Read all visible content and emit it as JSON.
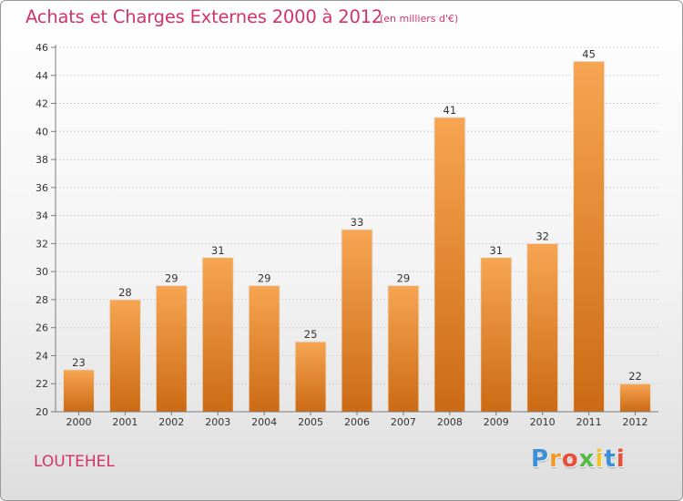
{
  "title": "Achats et Charges Externes 2000 à 2012",
  "subtitle": "(en milliers d'€)",
  "commune": "LOUTEHEL",
  "logo": {
    "letters": [
      "P",
      "r",
      "o",
      "x",
      "i",
      "t",
      "i"
    ],
    "colors": [
      "#3a8fd6",
      "#f29a2e",
      "#e8503a",
      "#58b947",
      "#f2c12e",
      "#3a8fd6",
      "#e8503a"
    ]
  },
  "colors": {
    "bar_light": "#f6a552",
    "bar_dark": "#cc6a14",
    "text_accent": "#d0346a",
    "axis": "#7a7a7a"
  },
  "chart_data": {
    "type": "bar",
    "categories": [
      "2000",
      "2001",
      "2002",
      "2003",
      "2004",
      "2005",
      "2006",
      "2007",
      "2008",
      "2009",
      "2010",
      "2011",
      "2012"
    ],
    "values": [
      23,
      28,
      29,
      31,
      29,
      25,
      33,
      29,
      41,
      31,
      32,
      45,
      22
    ],
    "ylim": [
      20,
      46
    ],
    "yticks": [
      20,
      22,
      24,
      26,
      28,
      30,
      32,
      34,
      36,
      38,
      40,
      42,
      44,
      46
    ],
    "grid": true,
    "data_labels": true
  }
}
